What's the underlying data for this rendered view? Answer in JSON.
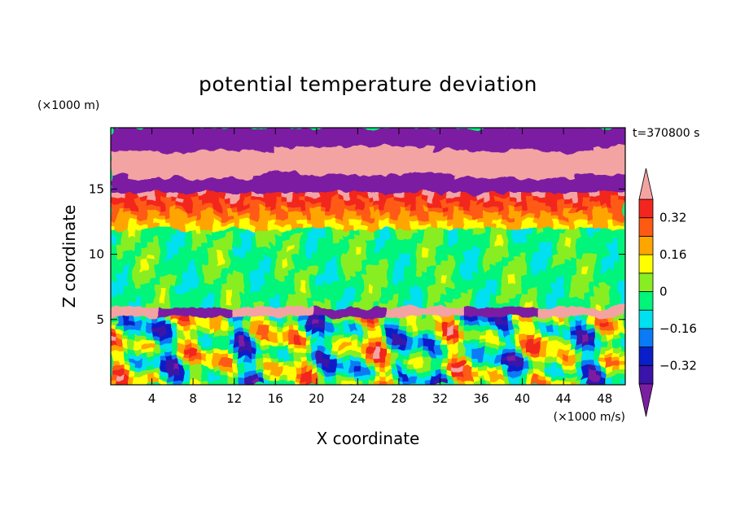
{
  "chart_data": {
    "type": "heatmap",
    "title": "potential temperature deviation",
    "xlabel": "X coordinate",
    "ylabel": "Z coordinate",
    "x_unit": "(×1000 m/s)",
    "y_unit": "(×1000 m)",
    "time_label": "t=370800 s",
    "xlim": [
      0,
      50
    ],
    "ylim": [
      0,
      19.7
    ],
    "x_ticks": [
      4,
      8,
      12,
      16,
      20,
      24,
      28,
      32,
      36,
      40,
      44,
      48
    ],
    "y_ticks": [
      5,
      10,
      15
    ],
    "colorbar": {
      "levels": [
        -0.4,
        -0.32,
        -0.24,
        -0.16,
        -0.08,
        0,
        0.08,
        0.16,
        0.24,
        0.32,
        0.4
      ],
      "labels": [
        "0.32",
        "0.16",
        "0",
        "−0.16",
        "−0.32"
      ],
      "label_values": [
        0.32,
        0.16,
        0,
        -0.16,
        -0.32
      ],
      "colors": [
        "#7b1fa2",
        "#3a13a8",
        "#0a1fc8",
        "#0a7af5",
        "#00e0f0",
        "#00f57a",
        "#88ee22",
        "#ffff00",
        "#ffa500",
        "#ff5a14",
        "#f2261e",
        "#f4a3a3"
      ],
      "extend": "both"
    },
    "bands": [
      {
        "z": [
          0,
          5.2
        ],
        "pattern": "turbulent mixed",
        "range": [
          -0.4,
          0.4
        ]
      },
      {
        "z": [
          5.2,
          6.0
        ],
        "pattern": "alternating pink / purple",
        "range": [
          -0.4,
          0.4
        ]
      },
      {
        "z": [
          6.0,
          12.0
        ],
        "pattern": "green / cyan",
        "range": [
          -0.12,
          0.1
        ]
      },
      {
        "z": [
          12.0,
          14.6
        ],
        "pattern": "yellow / orange / red",
        "range": [
          0.12,
          0.36
        ]
      },
      {
        "z": [
          14.6,
          19.7
        ],
        "pattern": "alternating pink / purple",
        "range": [
          -0.4,
          0.4
        ]
      }
    ]
  }
}
